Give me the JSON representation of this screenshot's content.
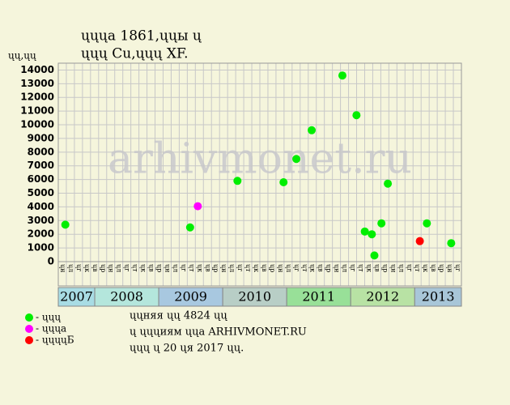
{
  "chart_data": {
    "type": "scatter",
    "title": "ųųųa 1861,ųųы ų",
    "subtitle": "ųųų Cu,ųųų XF.",
    "y_label": "ųų,ųų",
    "watermark": "arhivmonet.ru",
    "xlim": [
      2007.43,
      2013.73
    ],
    "ylim": [
      0,
      14500
    ],
    "yticks": [
      0,
      1000,
      2000,
      3000,
      4000,
      5000,
      6000,
      7000,
      8000,
      9000,
      10000,
      11000,
      12000,
      13000,
      14000
    ],
    "grid": true,
    "year_labels": [
      "2007",
      "2008",
      "2009",
      "2010",
      "2011",
      "2012",
      "2013"
    ],
    "year_colors": [
      "#a8dce4",
      "#b4e6dc",
      "#a8c8e0",
      "#b8cec6",
      "#98e098",
      "#b8e2a4",
      "#a8c6d8"
    ],
    "column_labels": [
      "ųн",
      "ųл",
      "ųг",
      "ųк",
      "ųв",
      "ųр",
      "ųн",
      "ųл",
      "ųг",
      "ųт",
      "ųк",
      "ųв",
      "ųр",
      "ųн",
      "ųл",
      "ųг",
      "ųт",
      "ųк",
      "ųв",
      "ųр",
      "ųн",
      "ųл",
      "ųг",
      "ųт",
      "ųк",
      "ųв",
      "ųр",
      "ųн",
      "ųл",
      "ųг",
      "ųт",
      "ųк",
      "ųв",
      "ųр",
      "ųн",
      "ųл",
      "ųг",
      "ųт",
      "ųк",
      "ųв",
      "ųр",
      "ųн",
      "ųл",
      "ųг",
      "ųт",
      "ųк",
      "ųв",
      "ųр",
      "ųн",
      "ųг"
    ],
    "series": [
      {
        "name": "- ųųų",
        "color": "#00ee00",
        "x": [
          2007.54,
          2009.49,
          2010.23,
          2010.95,
          2011.15,
          2011.39,
          2011.87,
          2012.09,
          2012.22,
          2012.33,
          2012.37,
          2012.48,
          2012.58,
          2013.19,
          2013.57
        ],
        "values": [
          2700,
          2500,
          5900,
          5800,
          7500,
          9600,
          13600,
          10700,
          2200,
          2000,
          450,
          2800,
          5700,
          2800,
          1350
        ]
      },
      {
        "name": "- ųųųa",
        "color": "#ff00ff",
        "x": [
          2009.61
        ],
        "values": [
          4050
        ]
      },
      {
        "name": "- ųųųųБ",
        "color": "#ff0000",
        "x": [
          2013.08
        ],
        "values": [
          1500
        ]
      }
    ],
    "footer": [
      "ųųняя ųų 4824 ųų",
      "ų ųųųиям ųųa ARHIVMONET.RU",
      "ųųų ų 20 ųя 2017 ųų."
    ]
  }
}
